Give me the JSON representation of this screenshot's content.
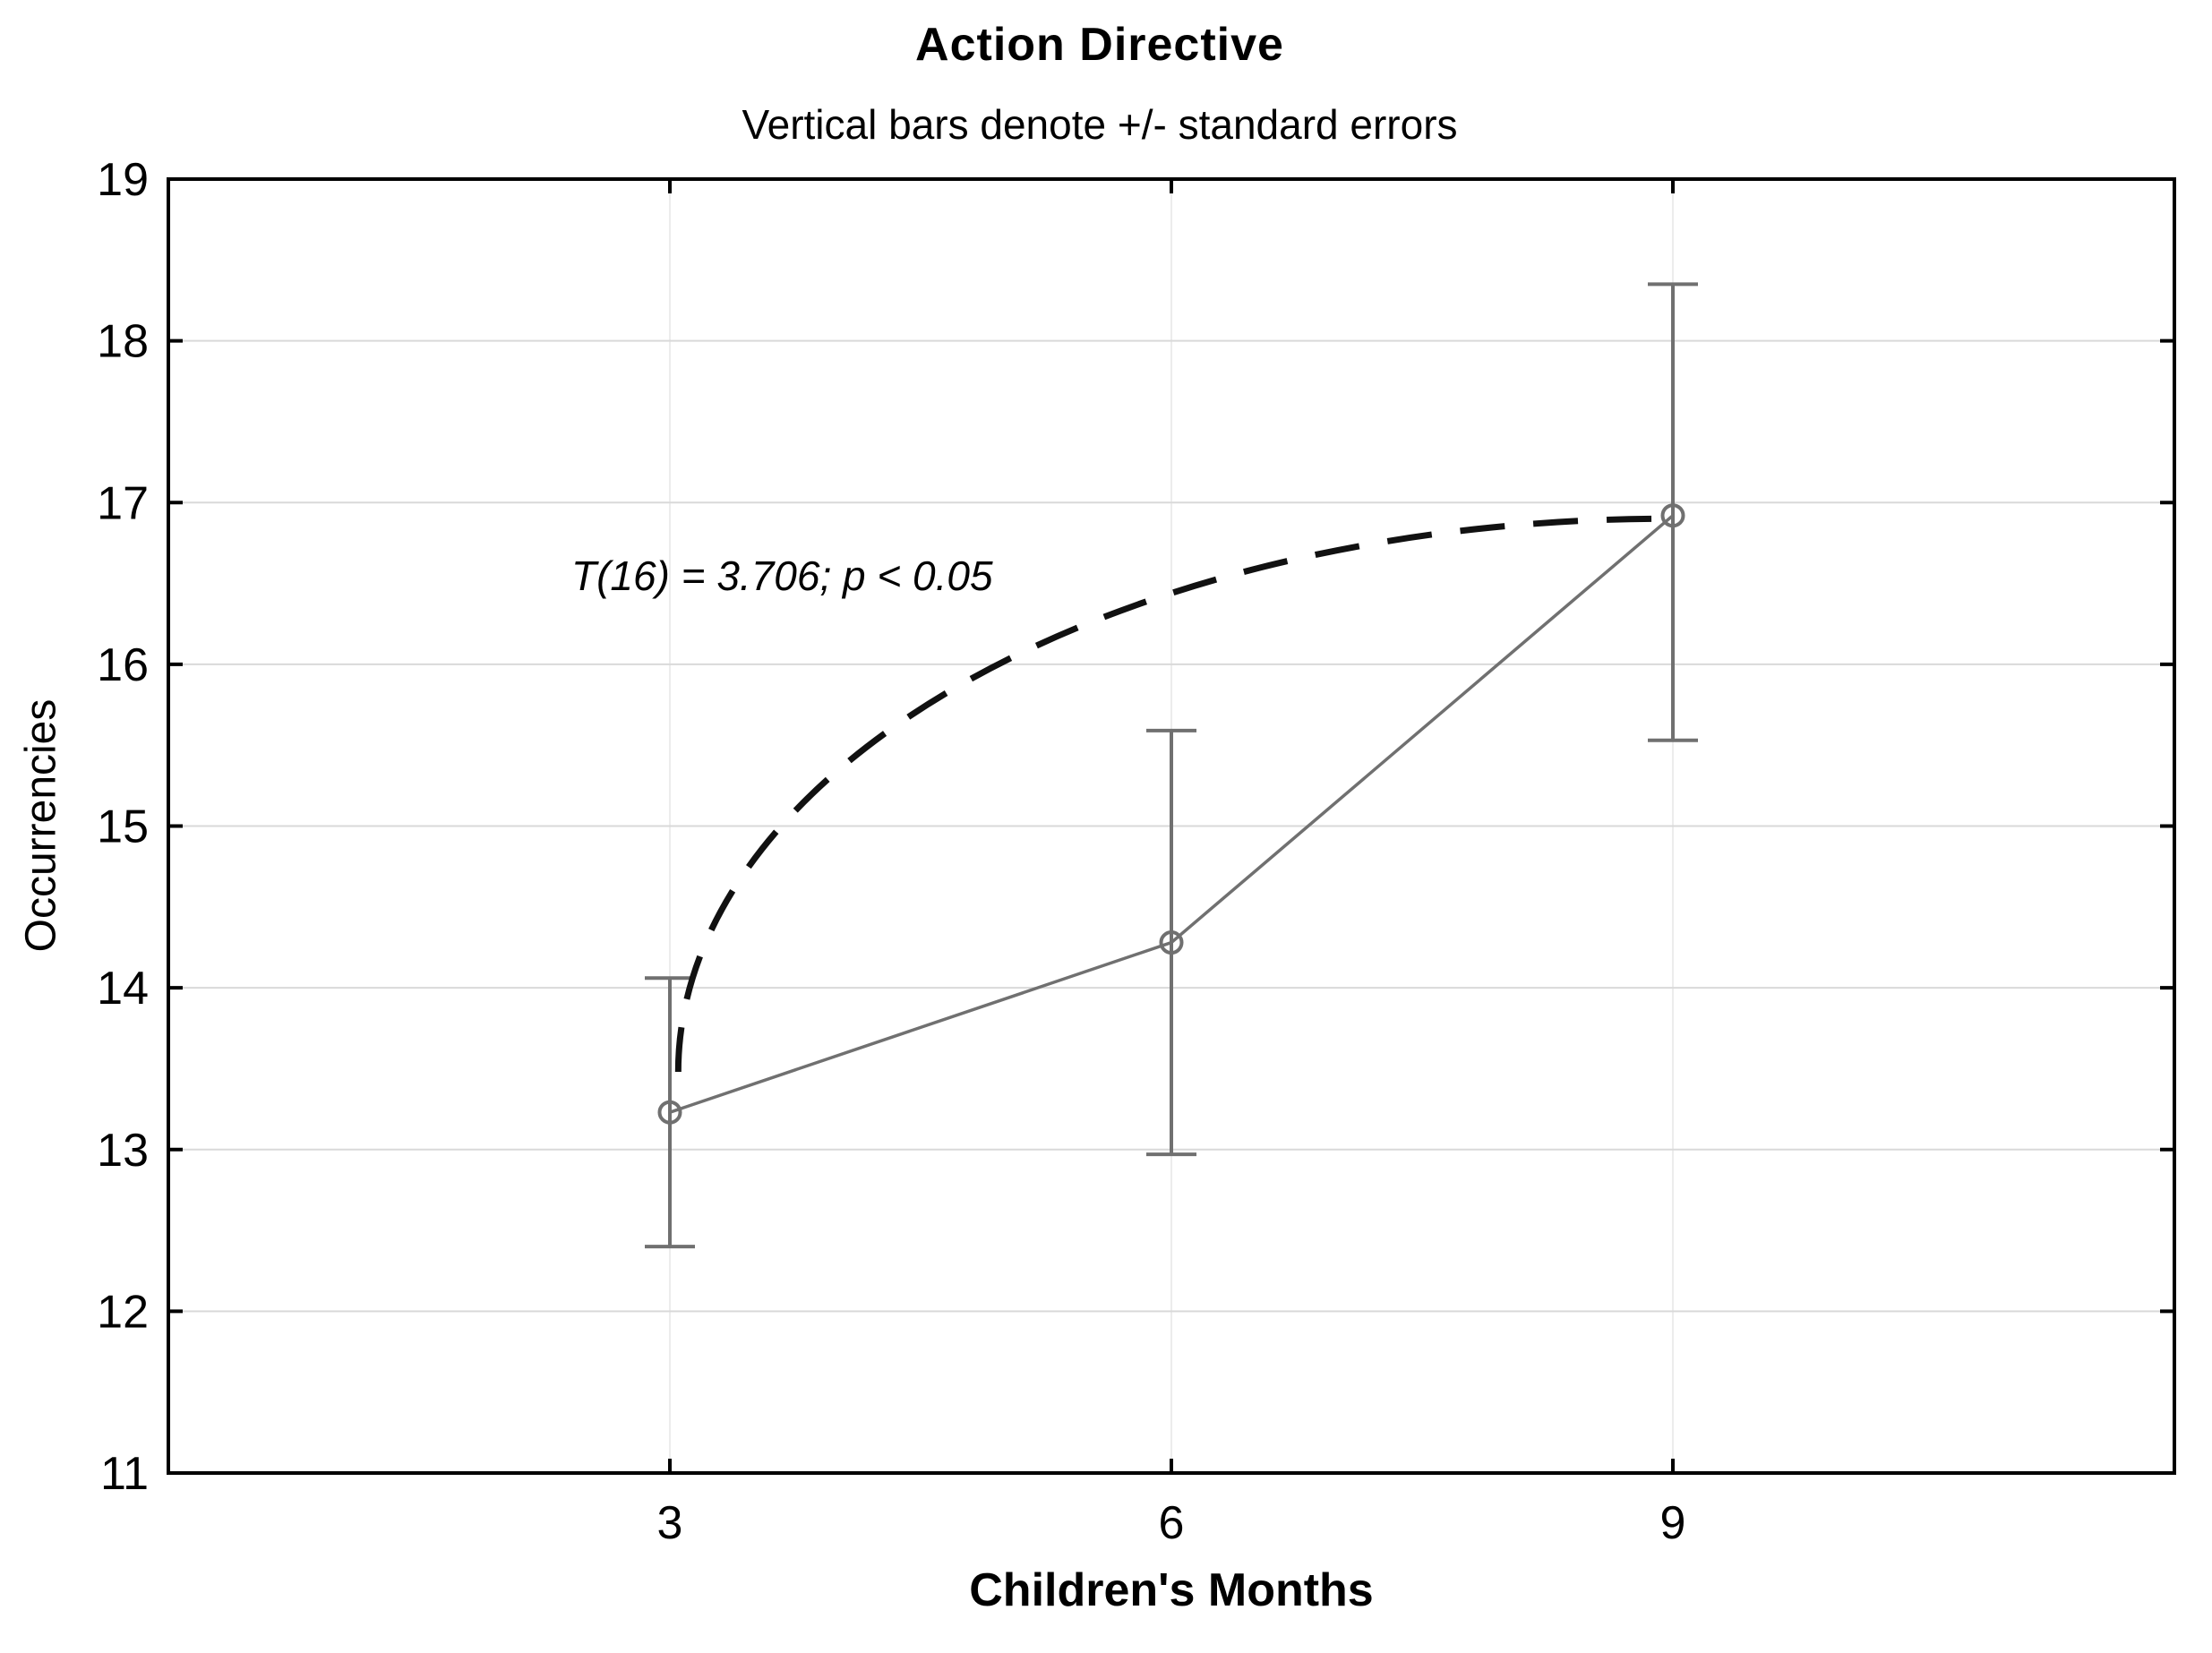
{
  "chart_data": {
    "type": "line",
    "title": "Action Directive",
    "subtitle": "Vertical bars denote +/- standard errors",
    "xlabel": "Children's Months",
    "ylabel": "Occurrencies",
    "xlim": [
      0,
      12
    ],
    "ylim": [
      11,
      19
    ],
    "x_ticks": [
      3,
      6,
      9
    ],
    "y_ticks": [
      11,
      12,
      13,
      14,
      15,
      16,
      17,
      18,
      19
    ],
    "grid": true,
    "legend": "none",
    "x": [
      3,
      6,
      9
    ],
    "series": [
      {
        "name": "Action Directive occurrences (mean ± standard error)",
        "values": [
          13.23,
          14.28,
          16.92
        ],
        "se_low": [
          12.4,
          12.97,
          15.53
        ],
        "se_high": [
          14.06,
          15.59,
          18.35
        ],
        "marker": "open-circle"
      }
    ],
    "annotation": {
      "text": "T(16) = 3.706; p < 0.05",
      "x": 2.41,
      "y": 16.69
    },
    "significance_arc": {
      "style": "dashed",
      "from": {
        "x": 3.05,
        "y": 13.48
      },
      "to": {
        "x": 8.96,
        "y": 16.9
      }
    },
    "colors": {
      "series": "#707070",
      "arc": "#111111",
      "grid_h": "#d9d9d9",
      "grid_v": "#ececec",
      "axis": "#000000",
      "text": "#000000"
    }
  }
}
